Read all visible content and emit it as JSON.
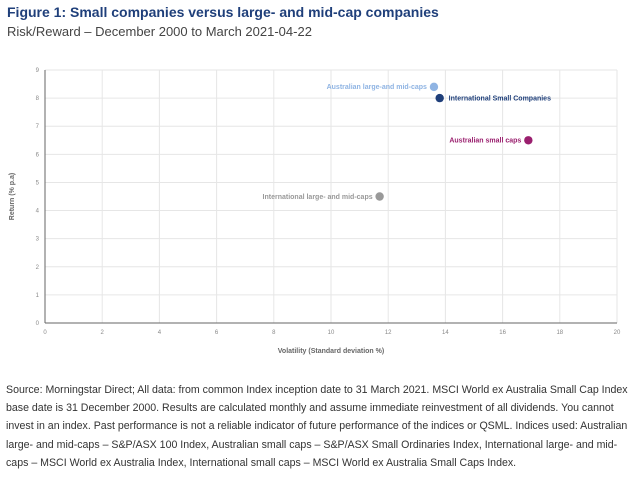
{
  "title": "Figure 1: Small companies versus large- and mid-cap companies",
  "subtitle": "Risk/Reward – December 2000 to March 2021-04-22",
  "chart_data": {
    "type": "scatter",
    "xlabel": "Volatility (Standard deviation %)",
    "ylabel": "Return (% p.a)",
    "xlim": [
      0,
      20
    ],
    "ylim": [
      0,
      9
    ],
    "xticks": [
      0,
      2,
      4,
      6,
      8,
      10,
      12,
      14,
      16,
      18,
      20
    ],
    "yticks": [
      0,
      1,
      2,
      3,
      4,
      5,
      6,
      7,
      8,
      9
    ],
    "grid": true,
    "points": [
      {
        "label": "Australian large-and mid-caps",
        "x": 13.6,
        "y": 8.4,
        "color": "#8fb4e3",
        "label_side": "left"
      },
      {
        "label": "International Small Companies",
        "x": 13.8,
        "y": 8.0,
        "color": "#1f3f7a",
        "label_side": "right"
      },
      {
        "label": "Australian small caps",
        "x": 16.9,
        "y": 6.5,
        "color": "#9a1f6e",
        "label_side": "left"
      },
      {
        "label": "International large- and mid-caps",
        "x": 11.7,
        "y": 4.5,
        "color": "#999999",
        "label_side": "left"
      }
    ]
  },
  "source": "Source: Morningstar Direct; All data: from common Index inception date to 31 March 2021. MSCI World ex Australia Small Cap Index base date is 31 December 2000. Results are calculated monthly and assume immediate reinvestment of all dividends. You cannot invest in an index. Past performance is not a reliable indicator of future performance of the indices or QSML. Indices used: Australian large- and mid-caps – S&P/ASX 100 Index, Australian small caps – S&P/ASX Small Ordinaries Index, International large- and mid-caps – MSCI World ex Australia Index, International small caps – MSCI World ex Australia Small Caps Index."
}
